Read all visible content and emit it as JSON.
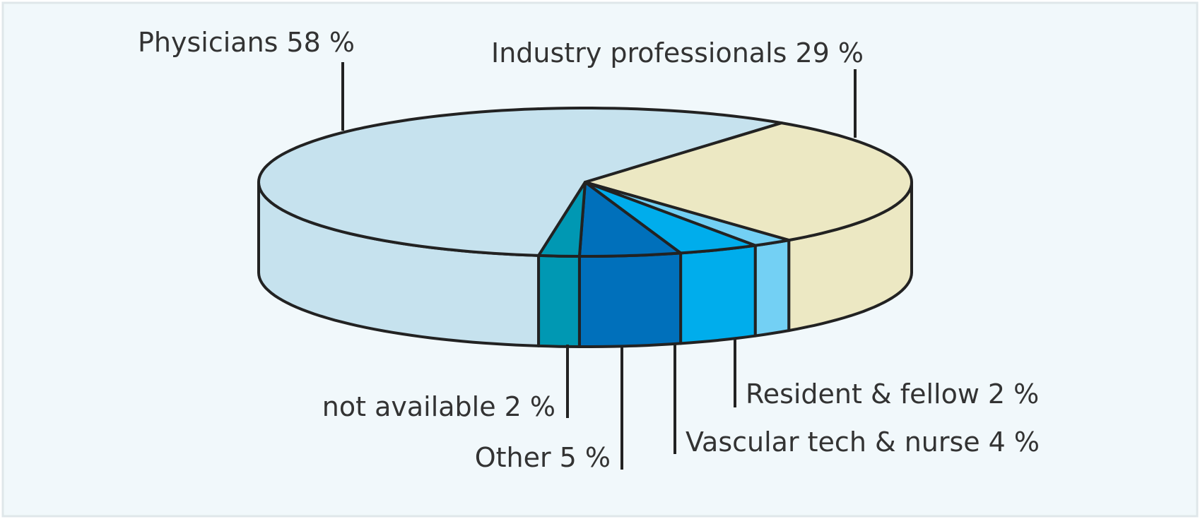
{
  "chart_data": {
    "type": "pie3d",
    "categories": [
      "Physicians",
      "Industry professionals",
      "Resident & fellow",
      "Vascular tech & nurse",
      "Other",
      "not available"
    ],
    "values": [
      58,
      29,
      2,
      4,
      5,
      2
    ],
    "value_labels": [
      "58 %",
      "29 %",
      "2 %",
      "4 %",
      "5 %",
      "2 %"
    ],
    "colors": [
      "#c6e2ee",
      "#ece8c3",
      "#73d0f4",
      "#00adec",
      "#0070bb",
      "#0098b3"
    ]
  }
}
